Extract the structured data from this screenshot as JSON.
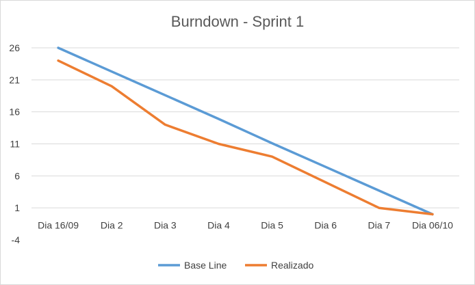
{
  "chart_data": {
    "type": "line",
    "title": "Burndown - Sprint  1",
    "xlabel": "",
    "ylabel": "",
    "categories": [
      "Dia 16/09",
      "Dia 2",
      "Dia 3",
      "Dia 4",
      "Dia 5",
      "Dia 6",
      "Dia 7",
      "Dia 06/10"
    ],
    "ylim": [
      -4,
      26
    ],
    "yticks": [
      "26",
      "21",
      "16",
      "11",
      "6",
      "1",
      "-4"
    ],
    "grid": true,
    "legend_position": "bottom",
    "series": [
      {
        "name": "Base Line",
        "color": "#5b9bd5",
        "values": [
          26,
          22.3,
          18.6,
          14.9,
          11.1,
          7.4,
          3.7,
          0
        ]
      },
      {
        "name": "Realizado",
        "color": "#ed7d31",
        "values": [
          24,
          20,
          14,
          11,
          9,
          5,
          1,
          0
        ]
      }
    ]
  }
}
